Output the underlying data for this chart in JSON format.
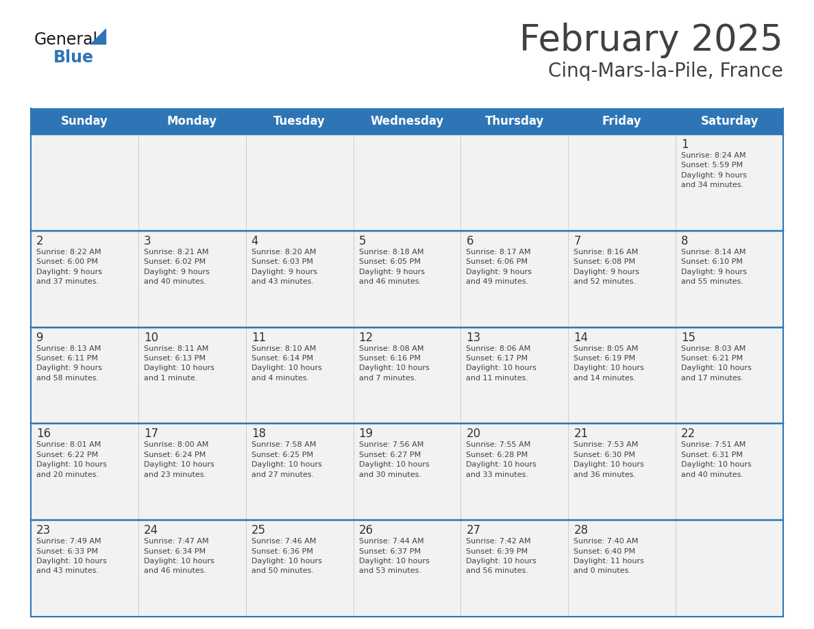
{
  "title": "February 2025",
  "subtitle": "Cinq-Mars-la-Pile, France",
  "header_bg": "#2E75B6",
  "header_text_color": "#FFFFFF",
  "header_font_size": 12,
  "day_names": [
    "Sunday",
    "Monday",
    "Tuesday",
    "Wednesday",
    "Thursday",
    "Friday",
    "Saturday"
  ],
  "title_font_size": 38,
  "subtitle_font_size": 20,
  "cell_text_color": "#404040",
  "day_number_color": "#333333",
  "line_color": "#2E75B6",
  "cell_bg_even": "#F2F2F2",
  "cell_bg_odd": "#FFFFFF",
  "bg_color": "#FFFFFF",
  "logo_general_color": "#1a1a1a",
  "logo_blue_color": "#2E75B6",
  "weeks": [
    [
      {
        "day": null,
        "info": null
      },
      {
        "day": null,
        "info": null
      },
      {
        "day": null,
        "info": null
      },
      {
        "day": null,
        "info": null
      },
      {
        "day": null,
        "info": null
      },
      {
        "day": null,
        "info": null
      },
      {
        "day": 1,
        "info": "Sunrise: 8:24 AM\nSunset: 5:59 PM\nDaylight: 9 hours\nand 34 minutes."
      }
    ],
    [
      {
        "day": 2,
        "info": "Sunrise: 8:22 AM\nSunset: 6:00 PM\nDaylight: 9 hours\nand 37 minutes."
      },
      {
        "day": 3,
        "info": "Sunrise: 8:21 AM\nSunset: 6:02 PM\nDaylight: 9 hours\nand 40 minutes."
      },
      {
        "day": 4,
        "info": "Sunrise: 8:20 AM\nSunset: 6:03 PM\nDaylight: 9 hours\nand 43 minutes."
      },
      {
        "day": 5,
        "info": "Sunrise: 8:18 AM\nSunset: 6:05 PM\nDaylight: 9 hours\nand 46 minutes."
      },
      {
        "day": 6,
        "info": "Sunrise: 8:17 AM\nSunset: 6:06 PM\nDaylight: 9 hours\nand 49 minutes."
      },
      {
        "day": 7,
        "info": "Sunrise: 8:16 AM\nSunset: 6:08 PM\nDaylight: 9 hours\nand 52 minutes."
      },
      {
        "day": 8,
        "info": "Sunrise: 8:14 AM\nSunset: 6:10 PM\nDaylight: 9 hours\nand 55 minutes."
      }
    ],
    [
      {
        "day": 9,
        "info": "Sunrise: 8:13 AM\nSunset: 6:11 PM\nDaylight: 9 hours\nand 58 minutes."
      },
      {
        "day": 10,
        "info": "Sunrise: 8:11 AM\nSunset: 6:13 PM\nDaylight: 10 hours\nand 1 minute."
      },
      {
        "day": 11,
        "info": "Sunrise: 8:10 AM\nSunset: 6:14 PM\nDaylight: 10 hours\nand 4 minutes."
      },
      {
        "day": 12,
        "info": "Sunrise: 8:08 AM\nSunset: 6:16 PM\nDaylight: 10 hours\nand 7 minutes."
      },
      {
        "day": 13,
        "info": "Sunrise: 8:06 AM\nSunset: 6:17 PM\nDaylight: 10 hours\nand 11 minutes."
      },
      {
        "day": 14,
        "info": "Sunrise: 8:05 AM\nSunset: 6:19 PM\nDaylight: 10 hours\nand 14 minutes."
      },
      {
        "day": 15,
        "info": "Sunrise: 8:03 AM\nSunset: 6:21 PM\nDaylight: 10 hours\nand 17 minutes."
      }
    ],
    [
      {
        "day": 16,
        "info": "Sunrise: 8:01 AM\nSunset: 6:22 PM\nDaylight: 10 hours\nand 20 minutes."
      },
      {
        "day": 17,
        "info": "Sunrise: 8:00 AM\nSunset: 6:24 PM\nDaylight: 10 hours\nand 23 minutes."
      },
      {
        "day": 18,
        "info": "Sunrise: 7:58 AM\nSunset: 6:25 PM\nDaylight: 10 hours\nand 27 minutes."
      },
      {
        "day": 19,
        "info": "Sunrise: 7:56 AM\nSunset: 6:27 PM\nDaylight: 10 hours\nand 30 minutes."
      },
      {
        "day": 20,
        "info": "Sunrise: 7:55 AM\nSunset: 6:28 PM\nDaylight: 10 hours\nand 33 minutes."
      },
      {
        "day": 21,
        "info": "Sunrise: 7:53 AM\nSunset: 6:30 PM\nDaylight: 10 hours\nand 36 minutes."
      },
      {
        "day": 22,
        "info": "Sunrise: 7:51 AM\nSunset: 6:31 PM\nDaylight: 10 hours\nand 40 minutes."
      }
    ],
    [
      {
        "day": 23,
        "info": "Sunrise: 7:49 AM\nSunset: 6:33 PM\nDaylight: 10 hours\nand 43 minutes."
      },
      {
        "day": 24,
        "info": "Sunrise: 7:47 AM\nSunset: 6:34 PM\nDaylight: 10 hours\nand 46 minutes."
      },
      {
        "day": 25,
        "info": "Sunrise: 7:46 AM\nSunset: 6:36 PM\nDaylight: 10 hours\nand 50 minutes."
      },
      {
        "day": 26,
        "info": "Sunrise: 7:44 AM\nSunset: 6:37 PM\nDaylight: 10 hours\nand 53 minutes."
      },
      {
        "day": 27,
        "info": "Sunrise: 7:42 AM\nSunset: 6:39 PM\nDaylight: 10 hours\nand 56 minutes."
      },
      {
        "day": 28,
        "info": "Sunrise: 7:40 AM\nSunset: 6:40 PM\nDaylight: 11 hours\nand 0 minutes."
      },
      {
        "day": null,
        "info": null
      }
    ]
  ]
}
